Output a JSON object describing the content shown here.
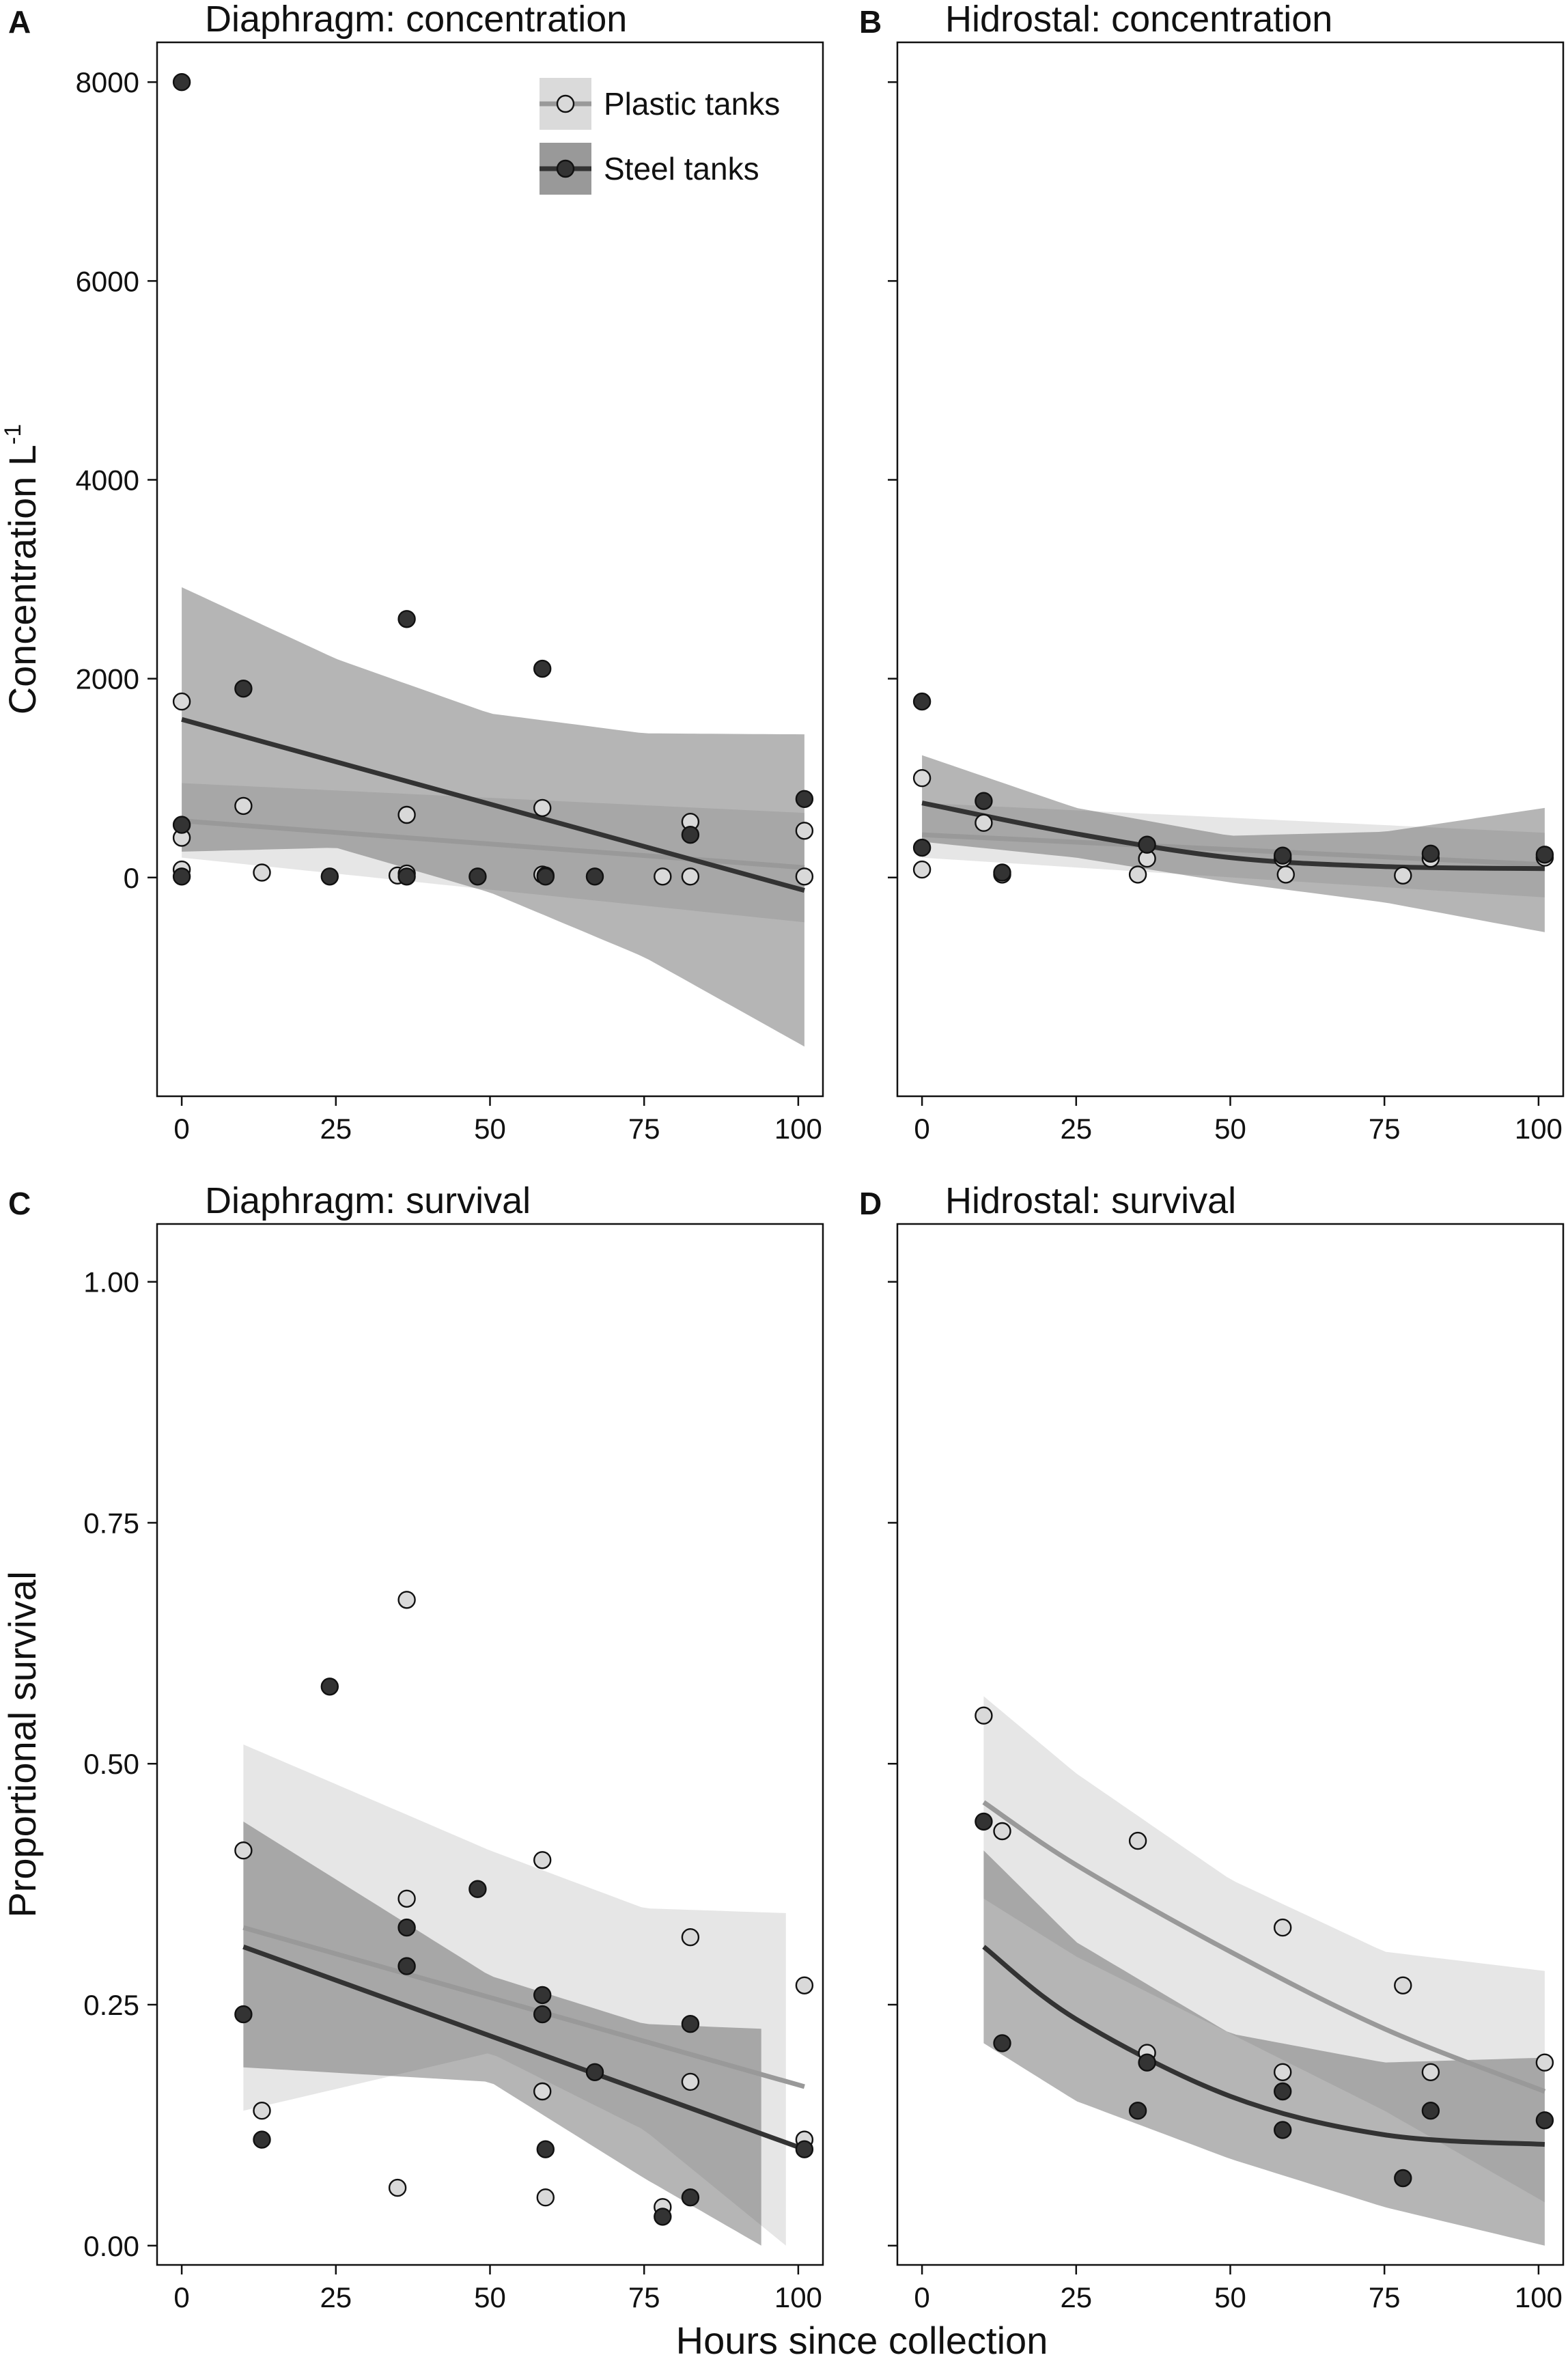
{
  "x_axis_title": "Hours since collection",
  "chart_data": [
    {
      "type": "scatter",
      "id": "A",
      "letter": "A",
      "title": "Diaphragm: concentration",
      "ylabel": "Concentration L",
      "ylabel_superscript": "-1",
      "xlim": [
        -4,
        104
      ],
      "ylim": [
        -2200,
        8400
      ],
      "x_ticks": [
        0,
        25,
        50,
        75,
        100
      ],
      "x_tick_labels": [
        "0",
        "25",
        "50",
        "75",
        "100"
      ],
      "y_ticks": [
        0,
        2000,
        4000,
        6000,
        8000
      ],
      "y_tick_labels": [
        "0",
        "2000",
        "4000",
        "6000",
        "8000"
      ],
      "legend": {
        "position": "top-right",
        "entries": [
          {
            "label": "Plastic tanks",
            "series": "Plastic tanks"
          },
          {
            "label": "Steel tanks",
            "series": "Steel tanks"
          }
        ]
      },
      "series": [
        {
          "name": "Plastic tanks",
          "color": "#999999",
          "point_fill": "#d9d9d9",
          "points": [
            [
              0,
              1770
            ],
            [
              0,
              400
            ],
            [
              0,
              80
            ],
            [
              10,
              720
            ],
            [
              13,
              50
            ],
            [
              35,
              20
            ],
            [
              36.5,
              630
            ],
            [
              36.5,
              40
            ],
            [
              58.5,
              700
            ],
            [
              58.5,
              30
            ],
            [
              59,
              20
            ],
            [
              78,
              10
            ],
            [
              82.5,
              560
            ],
            [
              82.5,
              10
            ],
            [
              101,
              470
            ],
            [
              101,
              10
            ]
          ],
          "fit": [
            [
              0,
              570
            ],
            [
              101,
              100
            ]
          ],
          "band_upper": [
            [
              0,
              950
            ],
            [
              101,
              650
            ]
          ],
          "band_lower": [
            [
              0,
              200
            ],
            [
              101,
              -450
            ]
          ]
        },
        {
          "name": "Steel tanks",
          "color": "#333333",
          "point_fill": "#333333",
          "points": [
            [
              0,
              8000
            ],
            [
              0,
              530
            ],
            [
              0,
              10
            ],
            [
              10,
              1900
            ],
            [
              24,
              10
            ],
            [
              36.5,
              2600
            ],
            [
              36.5,
              10
            ],
            [
              48,
              10
            ],
            [
              58.5,
              2100
            ],
            [
              59,
              10
            ],
            [
              67,
              10
            ],
            [
              82.5,
              430
            ],
            [
              101,
              790
            ]
          ],
          "fit": [
            [
              0,
              1590
            ],
            [
              101,
              -130
            ]
          ],
          "band_upper": [
            [
              0,
              2920
            ],
            [
              25,
              2200
            ],
            [
              50,
              1650
            ],
            [
              75,
              1450
            ],
            [
              101,
              1440
            ]
          ],
          "band_lower": [
            [
              0,
              260
            ],
            [
              25,
              300
            ],
            [
              50,
              -150
            ],
            [
              75,
              -800
            ],
            [
              101,
              -1700
            ]
          ]
        }
      ]
    },
    {
      "type": "scatter",
      "id": "B",
      "letter": "B",
      "title": "Hidrostal: concentration",
      "ylabel": "",
      "xlim": [
        -4,
        104
      ],
      "ylim": [
        -2200,
        8400
      ],
      "x_ticks": [
        0,
        25,
        50,
        75,
        100
      ],
      "x_tick_labels": [
        "0",
        "25",
        "50",
        "75",
        "100"
      ],
      "y_ticks": [
        0,
        2000,
        4000,
        6000,
        8000
      ],
      "y_tick_labels": [],
      "series": [
        {
          "name": "Plastic tanks",
          "color": "#999999",
          "point_fill": "#d9d9d9",
          "points": [
            [
              0,
              1000
            ],
            [
              0,
              80
            ],
            [
              10,
              550
            ],
            [
              13,
              30
            ],
            [
              35,
              30
            ],
            [
              36.5,
              190
            ],
            [
              58.5,
              190
            ],
            [
              59,
              30
            ],
            [
              78,
              20
            ],
            [
              82.5,
              190
            ],
            [
              101,
              200
            ]
          ],
          "fit": [
            [
              0,
              430
            ],
            [
              101,
              130
            ]
          ],
          "band_upper": [
            [
              0,
              750
            ],
            [
              101,
              450
            ]
          ],
          "band_lower": [
            [
              0,
              200
            ],
            [
              101,
              -200
            ]
          ]
        },
        {
          "name": "Steel tanks",
          "color": "#333333",
          "point_fill": "#333333",
          "points": [
            [
              0,
              1770
            ],
            [
              0,
              300
            ],
            [
              10,
              770
            ],
            [
              13,
              50
            ],
            [
              36.5,
              330
            ],
            [
              58.5,
              220
            ],
            [
              82.5,
              240
            ],
            [
              101,
              230
            ]
          ],
          "fit": [
            [
              0,
              750
            ],
            [
              25,
              440
            ],
            [
              50,
              200
            ],
            [
              75,
              110
            ],
            [
              101,
              90
            ]
          ],
          "band_upper": [
            [
              0,
              1230
            ],
            [
              25,
              700
            ],
            [
              50,
              420
            ],
            [
              75,
              460
            ],
            [
              101,
              700
            ]
          ],
          "band_lower": [
            [
              0,
              360
            ],
            [
              25,
              200
            ],
            [
              50,
              -50
            ],
            [
              75,
              -250
            ],
            [
              101,
              -550
            ]
          ]
        }
      ]
    },
    {
      "type": "scatter",
      "id": "C",
      "letter": "C",
      "title": "Diaphragm: survival",
      "ylabel": "Proportional survival",
      "xlim": [
        -4,
        104
      ],
      "ylim": [
        -0.02,
        1.06
      ],
      "x_ticks": [
        0,
        25,
        50,
        75,
        100
      ],
      "x_tick_labels": [
        "0",
        "25",
        "50",
        "75",
        "100"
      ],
      "y_ticks": [
        0,
        0.25,
        0.5,
        0.75,
        1
      ],
      "y_tick_labels": [
        "0.00",
        "0.25",
        "0.50",
        "0.75",
        "1.00"
      ],
      "series": [
        {
          "name": "Plastic tanks",
          "color": "#999999",
          "point_fill": "#d9d9d9",
          "points": [
            [
              10,
              0.41
            ],
            [
              13,
              0.14
            ],
            [
              35,
              0.06
            ],
            [
              36.5,
              0.67
            ],
            [
              36.5,
              0.36
            ],
            [
              58.5,
              0.4
            ],
            [
              58.5,
              0.16
            ],
            [
              59,
              0.05
            ],
            [
              78,
              0.04
            ],
            [
              82.5,
              0.32
            ],
            [
              82.5,
              0.17
            ],
            [
              101,
              0.27
            ],
            [
              101,
              0.11
            ]
          ],
          "fit": [
            [
              10,
              0.33
            ],
            [
              101,
              0.165
            ]
          ],
          "band_upper": [
            [
              10,
              0.52
            ],
            [
              50,
              0.41
            ],
            [
              75,
              0.35
            ],
            [
              98,
              0.345
            ]
          ],
          "band_lower": [
            [
              10,
              0.14
            ],
            [
              50,
              0.2
            ],
            [
              75,
              0.12
            ],
            [
              98,
              0
            ]
          ]
        },
        {
          "name": "Steel tanks",
          "color": "#333333",
          "point_fill": "#333333",
          "points": [
            [
              10,
              0.24
            ],
            [
              13,
              0.11
            ],
            [
              24,
              0.58
            ],
            [
              36.5,
              0.33
            ],
            [
              36.5,
              0.29
            ],
            [
              48,
              0.37
            ],
            [
              58.5,
              0.26
            ],
            [
              58.5,
              0.24
            ],
            [
              59,
              0.1
            ],
            [
              67,
              0.18
            ],
            [
              78,
              0.03
            ],
            [
              82.5,
              0.23
            ],
            [
              82.5,
              0.05
            ],
            [
              101,
              0.1
            ]
          ],
          "fit": [
            [
              10,
              0.31
            ],
            [
              101,
              0.1
            ]
          ],
          "band_upper": [
            [
              10,
              0.44
            ],
            [
              50,
              0.28
            ],
            [
              75,
              0.23
            ],
            [
              94,
              0.225
            ]
          ],
          "band_lower": [
            [
              10,
              0.185
            ],
            [
              50,
              0.17
            ],
            [
              75,
              0.07
            ],
            [
              94,
              0
            ]
          ]
        }
      ]
    },
    {
      "type": "scatter",
      "id": "D",
      "letter": "D",
      "title": "Hidrostal: survival",
      "ylabel": "",
      "xlim": [
        -4,
        104
      ],
      "ylim": [
        -0.02,
        1.06
      ],
      "x_ticks": [
        0,
        25,
        50,
        75,
        100
      ],
      "x_tick_labels": [
        "0",
        "25",
        "50",
        "75",
        "100"
      ],
      "y_ticks": [
        0,
        0.25,
        0.5,
        0.75,
        1
      ],
      "y_tick_labels": [],
      "series": [
        {
          "name": "Plastic tanks",
          "color": "#999999",
          "point_fill": "#d9d9d9",
          "points": [
            [
              10,
              0.55
            ],
            [
              13,
              0.43
            ],
            [
              35,
              0.42
            ],
            [
              36.5,
              0.2
            ],
            [
              58.5,
              0.33
            ],
            [
              58.5,
              0.18
            ],
            [
              78,
              0.27
            ],
            [
              82.5,
              0.18
            ],
            [
              101,
              0.19
            ]
          ],
          "fit": [
            [
              10,
              0.46
            ],
            [
              25,
              0.395
            ],
            [
              50,
              0.305
            ],
            [
              75,
              0.225
            ],
            [
              101,
              0.16
            ]
          ],
          "band_upper": [
            [
              10,
              0.57
            ],
            [
              25,
              0.49
            ],
            [
              50,
              0.38
            ],
            [
              75,
              0.305
            ],
            [
              101,
              0.285
            ]
          ],
          "band_lower": [
            [
              10,
              0.36
            ],
            [
              25,
              0.3
            ],
            [
              50,
              0.22
            ],
            [
              75,
              0.14
            ],
            [
              101,
              0.045
            ]
          ]
        },
        {
          "name": "Steel tanks",
          "color": "#333333",
          "point_fill": "#333333",
          "points": [
            [
              10,
              0.44
            ],
            [
              13,
              0.21
            ],
            [
              35,
              0.14
            ],
            [
              36.5,
              0.19
            ],
            [
              58.5,
              0.16
            ],
            [
              58.5,
              0.12
            ],
            [
              78,
              0.07
            ],
            [
              82.5,
              0.14
            ],
            [
              101,
              0.13
            ]
          ],
          "fit": [
            [
              10,
              0.31
            ],
            [
              25,
              0.235
            ],
            [
              50,
              0.155
            ],
            [
              75,
              0.115
            ],
            [
              101,
              0.105
            ]
          ],
          "band_upper": [
            [
              10,
              0.41
            ],
            [
              25,
              0.315
            ],
            [
              50,
              0.22
            ],
            [
              75,
              0.19
            ],
            [
              101,
              0.195
            ]
          ],
          "band_lower": [
            [
              10,
              0.21
            ],
            [
              25,
              0.15
            ],
            [
              50,
              0.09
            ],
            [
              75,
              0.04
            ],
            [
              101,
              0
            ]
          ]
        }
      ]
    }
  ]
}
